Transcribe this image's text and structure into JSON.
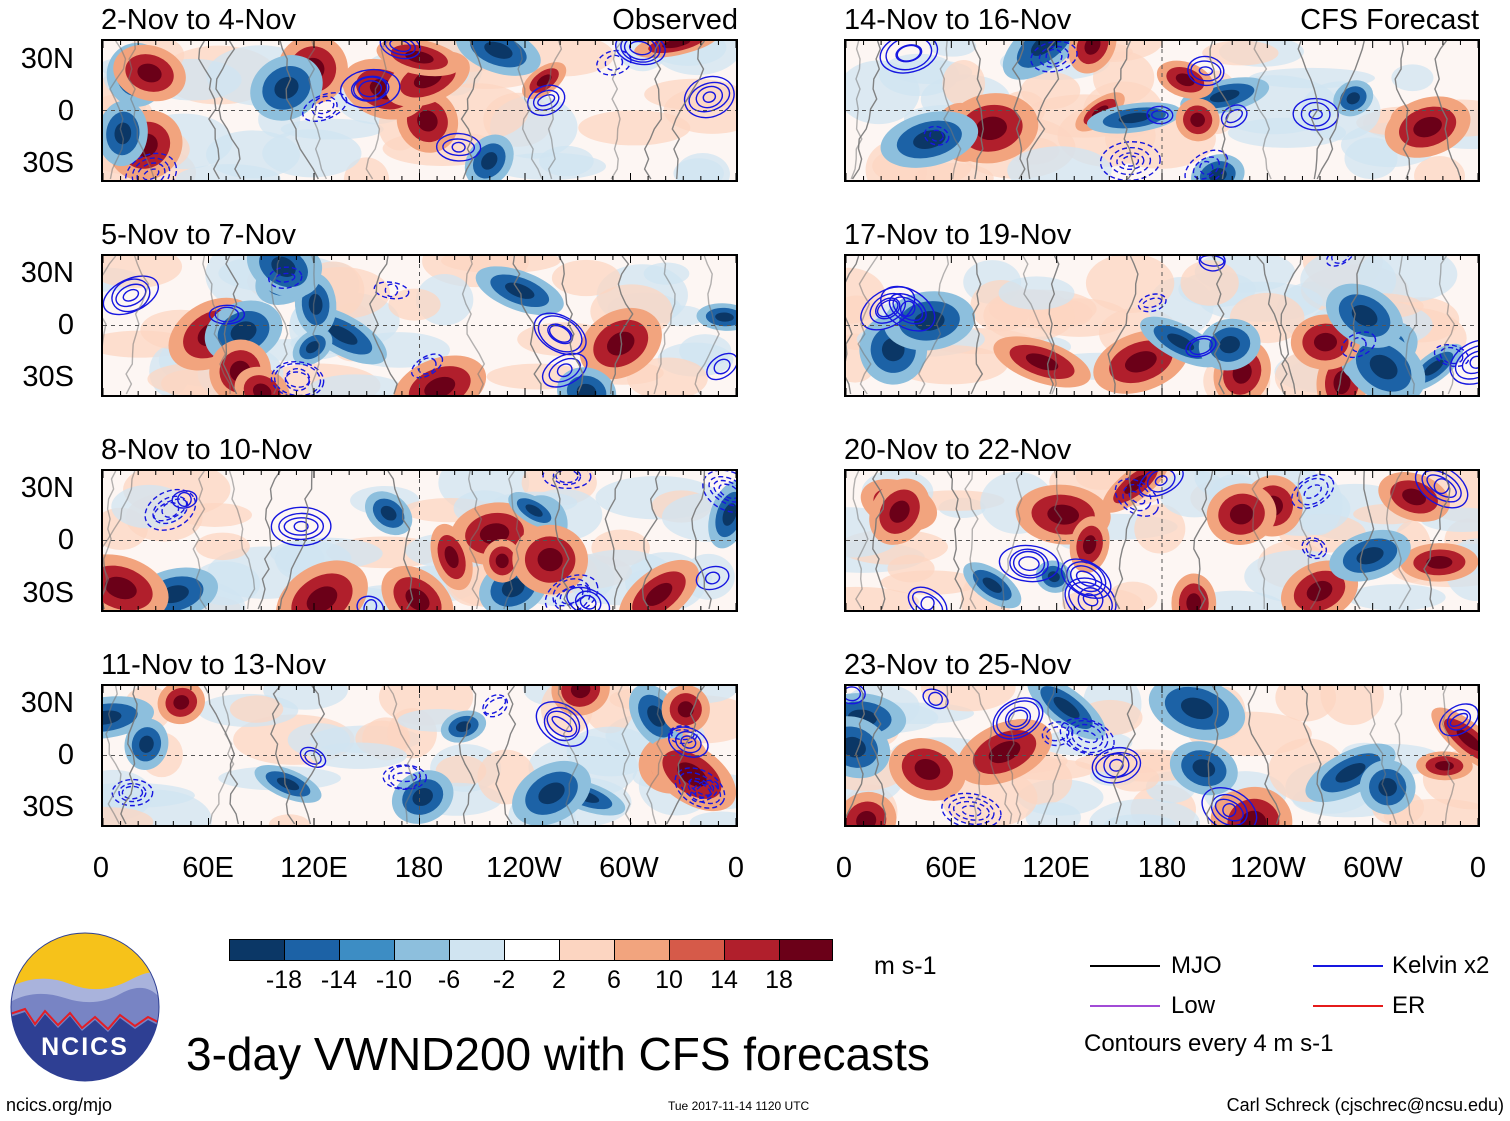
{
  "chart_data": {
    "type": "heatmap",
    "title": "3-day VWND200 with CFS forecasts",
    "units": "m s-1",
    "column_headers": [
      "Observed",
      "CFS Forecast"
    ],
    "panels": [
      {
        "id": "p1",
        "period": "2-Nov to 4-Nov",
        "source": "Observed"
      },
      {
        "id": "p2",
        "period": "5-Nov to 7-Nov",
        "source": "Observed"
      },
      {
        "id": "p3",
        "period": "8-Nov to 10-Nov",
        "source": "Observed"
      },
      {
        "id": "p4",
        "period": "11-Nov to 13-Nov",
        "source": "Observed"
      },
      {
        "id": "p5",
        "period": "14-Nov to 16-Nov",
        "source": "CFS Forecast"
      },
      {
        "id": "p6",
        "period": "17-Nov to 19-Nov",
        "source": "CFS Forecast"
      },
      {
        "id": "p7",
        "period": "20-Nov to 22-Nov",
        "source": "CFS Forecast"
      },
      {
        "id": "p8",
        "period": "23-Nov to 25-Nov",
        "source": "CFS Forecast"
      }
    ],
    "y_ticks": [
      "30N",
      "0",
      "30S"
    ],
    "x_ticks": [
      "0",
      "60E",
      "120E",
      "180",
      "120W",
      "60W",
      "0"
    ],
    "colorbar": {
      "labels": [
        "-18",
        "-14",
        "-10",
        "-6",
        "-2",
        "2",
        "6",
        "10",
        "14",
        "18"
      ],
      "colors": [
        "#0b3766",
        "#1c62a6",
        "#3d8dc4",
        "#8dbfdd",
        "#d0e4f1",
        "#ffffff",
        "#fcd5c1",
        "#f2a47e",
        "#d65a49",
        "#b11f2c",
        "#6b0018"
      ]
    },
    "contour_interval_text": "Contours every 4 m s-1",
    "legend": [
      {
        "label": "MJO",
        "color": "#000000"
      },
      {
        "label": "Kelvin x2",
        "color": "#1616e0"
      },
      {
        "label": "Low",
        "color": "#a24bd6"
      },
      {
        "label": "ER",
        "color": "#e51b1b"
      }
    ]
  },
  "footer": {
    "logo_text": "NCICS",
    "website": "ncics.org/mjo",
    "timestamp": "Tue 2017-11-14 1120 UTC",
    "credit": "Carl Schreck (cjschrec@ncsu.edu)"
  }
}
